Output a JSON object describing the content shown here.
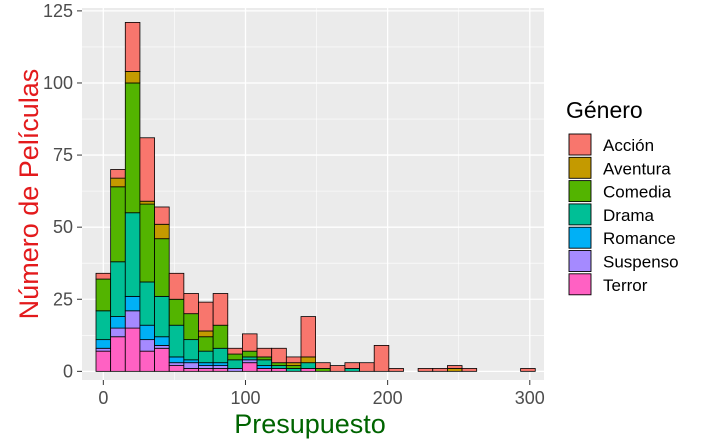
{
  "chart_data": {
    "type": "bar",
    "stacked": true,
    "xlabel": "Presupuesto",
    "ylabel": "Número de Películas",
    "xlabel_color": "#006400",
    "ylabel_color": "#e31a1c",
    "xlim": [
      -15,
      310
    ],
    "ylim": [
      -3,
      126
    ],
    "x_ticks": [
      0,
      100,
      200,
      300
    ],
    "y_ticks": [
      0,
      25,
      50,
      75,
      100,
      125
    ],
    "grid": true,
    "legend_position": "right",
    "legend": {
      "title": "Género",
      "entries": [
        "Acción",
        "Aventura",
        "Comedia",
        "Drama",
        "Romance",
        "Suspenso",
        "Terror"
      ]
    },
    "bin_width": 10.3,
    "bin_centers": [
      0,
      10.3,
      20.6,
      30.9,
      41.2,
      51.5,
      61.8,
      72.1,
      82.4,
      92.7,
      103,
      113.3,
      123.6,
      133.9,
      144.2,
      154.5,
      164.8,
      175.1,
      185.4,
      195.7,
      206,
      216.3,
      226.6,
      236.9,
      247.2,
      257.5,
      267.8,
      278.1,
      288.4,
      298.7
    ],
    "series": [
      {
        "name": "Terror",
        "color": "#ff61c3",
        "values": [
          7,
          12,
          15,
          7,
          8,
          2,
          1,
          1,
          1,
          0,
          3,
          1,
          1,
          0,
          1,
          0,
          0,
          0,
          0,
          0,
          0,
          0,
          0,
          0,
          0,
          0,
          0,
          0,
          0,
          0
        ]
      },
      {
        "name": "Suspenso",
        "color": "#a58aff",
        "values": [
          1,
          3,
          6,
          4,
          1,
          1,
          2,
          1,
          1,
          1,
          1,
          0,
          0,
          0,
          0,
          0,
          0,
          0,
          0,
          0,
          0,
          0,
          0,
          0,
          0,
          0,
          0,
          0,
          0,
          0
        ]
      },
      {
        "name": "Romance",
        "color": "#00b0f6",
        "values": [
          3,
          4,
          5,
          5,
          3,
          2,
          1,
          1,
          1,
          0,
          0,
          1,
          0,
          0,
          0,
          0,
          0,
          0,
          0,
          0,
          0,
          0,
          0,
          0,
          0,
          0,
          0,
          0,
          0,
          0
        ]
      },
      {
        "name": "Drama",
        "color": "#00bf96",
        "values": [
          10,
          19,
          29,
          15,
          14,
          11,
          7,
          4,
          5,
          3,
          1,
          2,
          1,
          1,
          2,
          0,
          0,
          1,
          0,
          0,
          0,
          0,
          0,
          0,
          0,
          0,
          0,
          0,
          0,
          0
        ]
      },
      {
        "name": "Comedia",
        "color": "#53b400",
        "values": [
          11,
          26,
          45,
          27,
          20,
          9,
          9,
          5,
          8,
          2,
          2,
          1,
          1,
          1,
          0,
          1,
          0,
          0,
          0,
          0,
          0,
          0,
          0,
          0,
          0,
          0,
          0,
          0,
          0,
          0
        ]
      },
      {
        "name": "Aventura",
        "color": "#c49a00",
        "values": [
          0,
          3,
          4,
          1,
          5,
          0,
          0,
          2,
          0,
          0,
          0,
          0,
          0,
          1,
          2,
          0,
          0,
          0,
          0,
          0,
          0,
          0,
          0,
          0,
          1,
          0,
          0,
          0,
          0,
          0
        ]
      },
      {
        "name": "Acción",
        "color": "#f8766d",
        "values": [
          2,
          3,
          17,
          22,
          6,
          9,
          7,
          10,
          11,
          2,
          6,
          3,
          5,
          2,
          14,
          2,
          2,
          2,
          3,
          9,
          1,
          0,
          1,
          1,
          1,
          1,
          0,
          0,
          0,
          1
        ]
      }
    ]
  }
}
